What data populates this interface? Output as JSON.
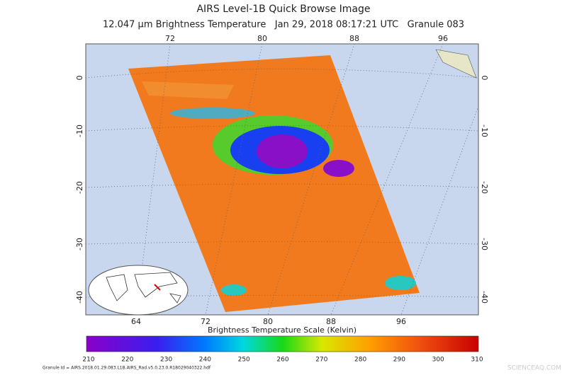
{
  "header": {
    "title": "AIRS Level-1B Quick Browse Image",
    "subtitle": "12.047 μm Brightness Temperature   Jan 29, 2018 08:17:21 UTC   Granule 083"
  },
  "map": {
    "top_longitudes": [
      72,
      80,
      88,
      96
    ],
    "bottom_longitudes": [
      64,
      72,
      80,
      88,
      96
    ],
    "latitudes": [
      0,
      -10,
      -20,
      -30,
      -40
    ]
  },
  "colorbar": {
    "title": "Brightness Temperature Scale (Kelvin)",
    "ticks": [
      210,
      220,
      230,
      240,
      250,
      260,
      270,
      280,
      290,
      300,
      310
    ]
  },
  "footer": {
    "granule": "Granule Id = AIRS.2018.01.29.083.L1B.AIRS_Rad.v5.0.23.0.R18029040322.hdf",
    "watermark": "SCIENCEAQ.COM"
  }
}
